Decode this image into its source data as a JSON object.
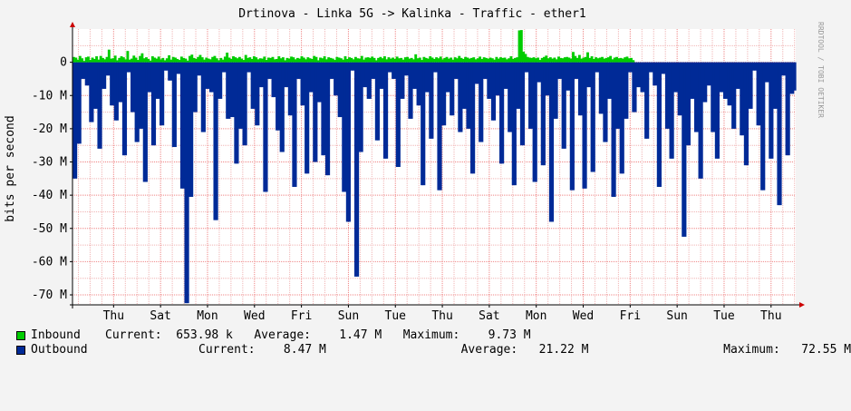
{
  "chart_data": {
    "type": "area",
    "title": "Drtinova - Linka 5G -> Kalinka  - Traffic - ether1",
    "ylabel": "bits per second",
    "watermark": "RRDTOOL / TOBI OETIKER",
    "y_ticks": [
      {
        "value": 0,
        "label": "0"
      },
      {
        "value": -10000000,
        "label": "-10 M"
      },
      {
        "value": -20000000,
        "label": "-20 M"
      },
      {
        "value": -30000000,
        "label": "-30 M"
      },
      {
        "value": -40000000,
        "label": "-40 M"
      },
      {
        "value": -50000000,
        "label": "-50 M"
      },
      {
        "value": -60000000,
        "label": "-60 M"
      },
      {
        "value": -70000000,
        "label": "-70 M"
      }
    ],
    "ylim": [
      -73000000,
      10000000
    ],
    "x_day_labels": [
      "Thu",
      "Sat",
      "Mon",
      "Wed",
      "Fri",
      "Sun",
      "Tue",
      "Thu",
      "Sat",
      "Mon",
      "Wed",
      "Fri",
      "Sun",
      "Tue",
      "Thu"
    ],
    "x_day_positions": [
      1.75,
      3.75,
      5.75,
      7.75,
      9.75,
      11.75,
      13.75,
      15.75,
      17.75,
      19.75,
      21.75,
      23.75,
      25.75,
      27.75,
      29.75
    ],
    "x_range_days": [
      0,
      30.8
    ],
    "grid": true,
    "colors": {
      "inbound": "#00cc00",
      "outbound": "#002a97",
      "background": "#f3f3f3",
      "canvas": "#ffffff",
      "grid_minor": "#f0b4b4",
      "grid_major": "#ef8484",
      "axis_arrow": "#cc0000"
    },
    "series": [
      {
        "name": "Inbound",
        "legend_text": "Current:  653.98 k   Average:    1.47 M   Maximum:    9.73 M",
        "values": [
          1.6,
          1.4,
          0.8,
          1.9,
          1.2,
          0.4,
          1.5,
          1.7,
          0.7,
          1.4,
          1.0,
          1.8,
          0.8,
          1.9,
          1.3,
          0.9,
          1.6,
          3.8,
          1.1,
          1.2,
          2.0,
          0.6,
          1.3,
          1.8,
          1.5,
          0.9,
          3.4,
          0.8,
          1.1,
          2.0,
          1.4,
          0.7,
          1.9,
          2.7,
          1.2,
          1.5,
          1.0,
          0.5,
          1.8,
          1.4,
          1.1,
          1.7,
          0.9,
          1.3,
          0.6,
          1.2,
          2.1,
          0.8,
          1.6,
          1.4,
          1.0,
          0.7,
          1.7,
          1.3,
          1.1,
          0.5,
          1.9,
          2.3,
          1.3,
          1.0,
          1.6,
          2.2,
          1.5,
          0.8,
          1.4,
          1.1,
          0.9,
          1.6,
          1.9,
          1.2,
          0.6,
          1.3,
          0.8,
          1.7,
          2.9,
          1.4,
          1.0,
          1.8,
          1.5,
          1.2,
          1.6,
          1.1,
          0.7,
          2.2,
          1.3,
          1.5,
          1.0,
          1.8,
          1.5,
          0.9,
          1.2,
          1.1,
          1.7,
          0.7,
          1.4,
          1.3,
          1.6,
          0.9,
          1.0,
          1.8,
          1.2,
          1.5,
          0.6,
          1.3,
          1.1,
          1.7,
          1.5,
          0.9,
          1.3,
          1.1,
          1.8,
          1.4,
          0.9,
          1.5,
          1.2,
          1.0,
          1.9,
          1.6,
          0.6,
          1.4,
          1.2,
          1.8,
          0.9,
          1.5,
          1.3,
          1.1,
          0.7,
          1.6,
          1.4,
          1.2,
          0.8,
          1.8,
          1.0,
          1.5,
          1.3,
          0.9,
          1.6,
          1.2,
          1.1,
          1.9,
          0.8,
          1.4,
          1.5,
          1.3,
          1.7,
          1.3,
          0.6,
          1.3,
          1.6,
          1.2,
          1.8,
          0.9,
          1.5,
          1.1,
          1.4,
          1.0,
          1.7,
          1.2,
          1.3,
          0.8,
          1.5,
          1.6,
          1.1,
          1.3,
          0.9,
          2.4,
          1.2,
          1.4,
          0.7,
          1.6,
          1.3,
          1.1,
          1.8,
          1.4,
          1.0,
          1.5,
          1.2,
          1.7,
          0.9,
          1.3,
          1.6,
          1.1,
          1.4,
          0.8,
          1.5,
          1.2,
          1.9,
          1.3,
          1.0,
          1.6,
          1.4,
          1.1,
          1.3,
          1.5,
          0.9,
          1.2,
          1.7,
          1.0,
          1.5,
          1.3,
          1.1,
          1.4,
          1.2,
          0.8,
          1.6,
          1.1,
          1.5,
          1.3,
          1.4,
          0.9,
          1.2,
          1.8,
          1.0,
          1.3,
          1.5,
          9.6,
          9.7,
          3.2,
          2.5,
          1.6,
          1.4,
          1.3,
          1.5,
          1.2,
          1.4,
          0.7,
          1.3,
          1.6,
          2.0,
          1.2,
          1.5,
          1.1,
          1.4,
          0.9,
          1.7,
          1.3,
          1.2,
          1.5,
          1.6,
          1.4,
          1.1,
          3.1,
          1.9,
          1.3,
          2.2,
          1.1,
          1.4,
          1.6,
          3.0,
          1.3,
          1.8,
          1.0,
          1.5,
          1.2,
          1.4,
          1.6,
          1.1,
          1.3,
          1.5,
          1.9,
          0.9,
          1.4,
          1.6,
          1.2,
          1.3,
          1.1,
          1.5,
          1.7,
          1.2,
          1.3,
          0.65
        ]
      },
      {
        "name": "Outbound",
        "legend_text": "Current:    8.47 M                   Average:   21.22 M                   Maximum:   72.55 M",
        "values": [
          -35,
          -35,
          -24.5,
          -24.5,
          -5,
          -5,
          -7,
          -7,
          -18,
          -18,
          -14,
          -14,
          -26,
          -26,
          -8,
          -8,
          -4,
          -4,
          -13,
          -13,
          -17.5,
          -17.5,
          -12,
          -12,
          -28,
          -28,
          -3,
          -3,
          -15,
          -15,
          -24,
          -24,
          -20,
          -20,
          -36,
          -36,
          -9,
          -9,
          -25,
          -25,
          -11,
          -11,
          -19,
          -19,
          -2.5,
          -2.5,
          -5.5,
          -5.5,
          -25.5,
          -25.5,
          -3.5,
          -3.5,
          -38,
          -38,
          -72.5,
          -72.5,
          -40.5,
          -40.5,
          -15,
          -15,
          -4,
          -4,
          -21,
          -21,
          -8,
          -8,
          -9,
          -9,
          -47.5,
          -47.5,
          -11,
          -11,
          -3,
          -3,
          -17,
          -17,
          -16.5,
          -16.5,
          -30.5,
          -30.5,
          -20,
          -20,
          -25,
          -25,
          -3,
          -3,
          -14,
          -14,
          -19,
          -19,
          -7.5,
          -7.5,
          -39,
          -39,
          -5,
          -5,
          -10.5,
          -10.5,
          -20.5,
          -20.5,
          -27,
          -27,
          -7.5,
          -7.5,
          -16,
          -16,
          -37.5,
          -37.5,
          -5,
          -5,
          -13,
          -13,
          -33.5,
          -33.5,
          -9,
          -9,
          -30,
          -30,
          -12,
          -12,
          -28,
          -28,
          -34,
          -34,
          -5,
          -5,
          -10,
          -10,
          -16.5,
          -16.5,
          -39,
          -39,
          -48,
          -48,
          -2.5,
          -2.5,
          -64.5,
          -64.5,
          -27,
          -27,
          -7.5,
          -7.5,
          -11,
          -11,
          -5,
          -5,
          -23.5,
          -23.5,
          -8,
          -8,
          -29,
          -29,
          -3,
          -3,
          -5,
          -5,
          -31.5,
          -31.5,
          -11,
          -11,
          -4,
          -4,
          -17,
          -17,
          -8,
          -8,
          -13,
          -13,
          -37,
          -37,
          -9,
          -9,
          -23,
          -23,
          -3,
          -3,
          -38.5,
          -38.5,
          -19,
          -19,
          -9,
          -9,
          -16,
          -16,
          -5,
          -5,
          -21,
          -21,
          -14,
          -14,
          -20,
          -20,
          -33.5,
          -33.5,
          -6.5,
          -6.5,
          -24,
          -24,
          -5,
          -5,
          -11,
          -11,
          -17.5,
          -17.5,
          -10,
          -10,
          -30.5,
          -30.5,
          -8,
          -8,
          -21,
          -21,
          -37,
          -37,
          -14,
          -14,
          -25,
          -25,
          -3,
          -3,
          -20,
          -20,
          -36,
          -36,
          -6,
          -6,
          -31,
          -31,
          -10,
          -10,
          -48,
          -48,
          -17,
          -17,
          -5,
          -5,
          -26,
          -26,
          -8.5,
          -8.5,
          -38.5,
          -38.5,
          -5,
          -5,
          -16,
          -16,
          -38,
          -38,
          -7.5,
          -7.5,
          -33,
          -33,
          -3,
          -3,
          -15.5,
          -15.5,
          -24,
          -24,
          -11,
          -11,
          -40.5,
          -40.5,
          -20,
          -20,
          -33.5,
          -33.5,
          -17,
          -17,
          -3,
          -3,
          -15,
          -15,
          -7.5,
          -7.5,
          -9,
          -9,
          -23,
          -23,
          -3,
          -3,
          -7,
          -7,
          -37.5,
          -37.5,
          -3.5,
          -3.5,
          -20,
          -20,
          -29,
          -29,
          -9,
          -9,
          -16,
          -16,
          -52.5,
          -52.5,
          -25,
          -25,
          -11,
          -11,
          -21,
          -21,
          -35,
          -35,
          -12,
          -12,
          -7,
          -7,
          -21,
          -21,
          -29,
          -29,
          -9,
          -9,
          -11,
          -11,
          -13,
          -13,
          -20,
          -20,
          -8,
          -8,
          -22,
          -22,
          -31,
          -31,
          -14,
          -14,
          -2.5,
          -2.5,
          -19,
          -19,
          -38.5,
          -38.5,
          -6,
          -6,
          -29,
          -29,
          -14,
          -14,
          -43,
          -43,
          -4,
          -4,
          -28,
          -28,
          -9.5,
          -9.5,
          -8.5
        ]
      }
    ],
    "unit": "M"
  }
}
